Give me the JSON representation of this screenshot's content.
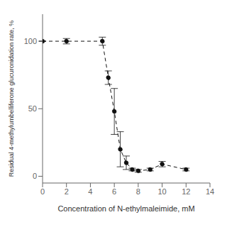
{
  "chart_data": {
    "type": "line",
    "x": [
      0,
      2,
      5,
      5.5,
      6,
      6.5,
      7,
      7.5,
      8,
      9,
      10,
      12
    ],
    "values": [
      100,
      100,
      100,
      73,
      48,
      20,
      10,
      5,
      4,
      5,
      9,
      5
    ],
    "error_low": [
      0,
      2,
      3,
      5,
      17,
      13,
      5,
      1,
      1,
      1,
      2,
      1
    ],
    "error_high": [
      0,
      2,
      3,
      5,
      17,
      13,
      5,
      1,
      1,
      1,
      2,
      1
    ],
    "xlabel": "Concentration of N-ethylmaleimide, mM",
    "ylabel": "Residual 4-methylumbelliferone glucuronidation rate, %",
    "xlim": [
      0,
      14
    ],
    "ylim": [
      -5,
      120
    ],
    "xticks": [
      0,
      2,
      4,
      6,
      8,
      10,
      12,
      14
    ],
    "yticks": [
      0,
      50,
      100
    ],
    "color": "#111111",
    "marker": "circle",
    "line_style": "dashed",
    "grid": false
  }
}
